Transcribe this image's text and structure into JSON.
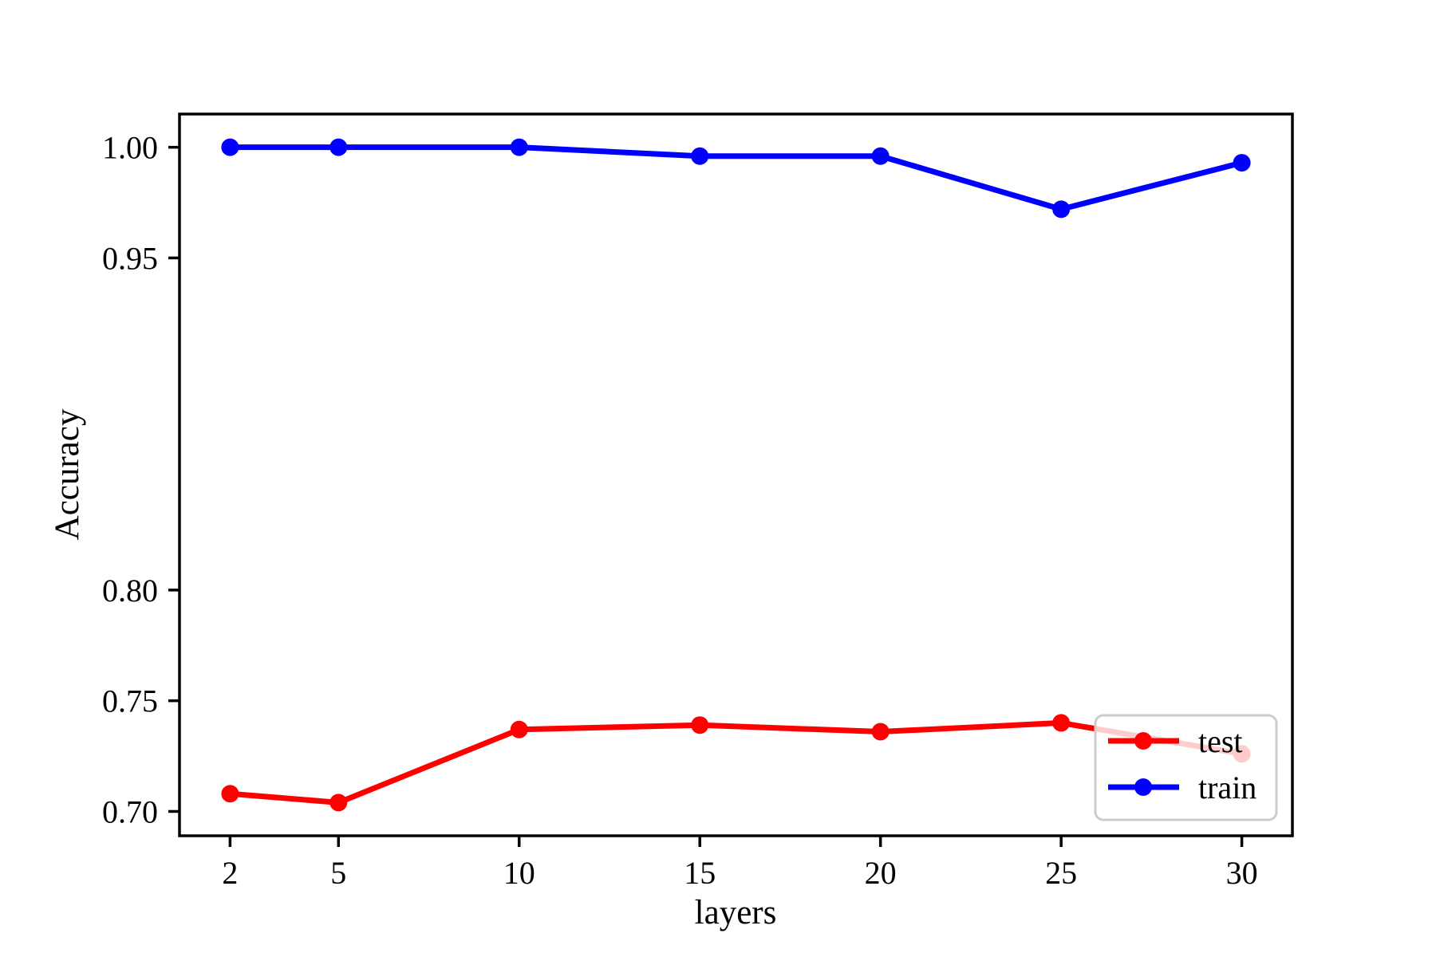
{
  "figure": {
    "background": "#ffffff",
    "axis_color": "#000000"
  },
  "chart_data": {
    "type": "line",
    "title": "",
    "xlabel": "layers",
    "ylabel": "Accuracy",
    "x": [
      2,
      5,
      10,
      15,
      20,
      25,
      30
    ],
    "series": [
      {
        "name": "test",
        "color": "#ff0000",
        "values": [
          0.708,
          0.704,
          0.737,
          0.739,
          0.736,
          0.74,
          0.726
        ]
      },
      {
        "name": "train",
        "color": "#0000ff",
        "values": [
          1.0,
          1.0,
          1.0,
          0.996,
          0.996,
          0.972,
          0.993
        ]
      }
    ],
    "xticks": [
      2,
      5,
      10,
      15,
      20,
      25,
      30
    ],
    "yticks": [
      1.0,
      0.95,
      0.8,
      0.75,
      0.7
    ],
    "ytick_labels": [
      "1.00",
      "0.95",
      "0.80",
      "0.75",
      "0.70"
    ],
    "xlim": [
      0.6,
      31.4
    ],
    "ylim": [
      0.689,
      1.015
    ],
    "grid": false,
    "legend": {
      "position": "lower right",
      "entries": [
        "test",
        "train"
      ],
      "border_color": "#cccccc",
      "background": "#ffffff",
      "background_opacity": 0.8
    }
  }
}
